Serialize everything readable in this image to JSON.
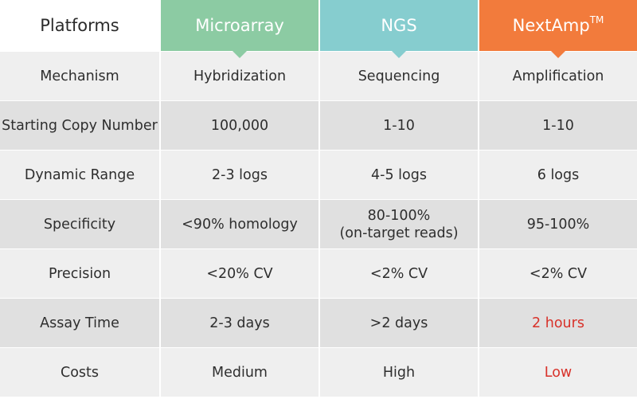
{
  "colors": {
    "microarray": "#8ccba3",
    "ngs": "#86cdcf",
    "nextamp": "#f27b3c",
    "highlight_text": "#d8322a"
  },
  "header": {
    "platforms_label": "Platforms",
    "col1": "Microarray",
    "col2": "NGS",
    "col3": "NextAmp",
    "col3_superscript": "TM"
  },
  "rows": [
    {
      "label": "Mechanism",
      "c1": "Hybridization",
      "c2": "Sequencing",
      "c3": "Amplification"
    },
    {
      "label": "Starting Copy Number",
      "c1": "100,000",
      "c2": "1-10",
      "c3": "1-10"
    },
    {
      "label": "Dynamic Range",
      "c1": "2-3 logs",
      "c2": "4-5 logs",
      "c3": "6 logs"
    },
    {
      "label": "Specificity",
      "c1": "<90% homology",
      "c2": "80-100%\n(on-target reads)",
      "c3": "95-100%"
    },
    {
      "label": "Precision",
      "c1": "<20% CV",
      "c2": "<2% CV",
      "c3": "<2% CV"
    },
    {
      "label": "Assay Time",
      "c1": "2-3 days",
      "c2": ">2 days",
      "c3": "2 hours"
    },
    {
      "label": "Costs",
      "c1": "Medium",
      "c2": "High",
      "c3": "Low"
    }
  ]
}
